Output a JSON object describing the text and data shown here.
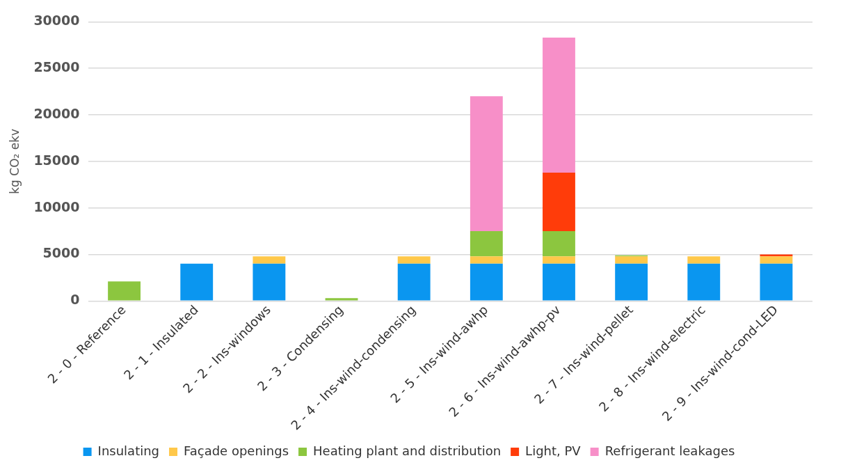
{
  "chart_data": {
    "type": "bar",
    "stacked": true,
    "ylabel": "kg CO₂ ekv",
    "categories": [
      "2 - 0 - Reference",
      "2 - 1 - Insulated",
      "2 - 2 - Ins-windows",
      "2 - 3 - Condensing",
      "2 - 4 - Ins-wind-condensing",
      "2 - 5 - Ins-wind-awhp",
      "2 - 6 - Ins-wind-awhp-pv",
      "2 - 7 - Ins-wind-pellet",
      "2 - 8 - Ins-wind-electric",
      "2 - 9 - Ins-wind-cond-LED"
    ],
    "series": [
      {
        "name": "Insulating",
        "color": "#0a96f0",
        "values": [
          0,
          4000,
          4000,
          0,
          4000,
          4000,
          4000,
          4000,
          4000,
          4000
        ]
      },
      {
        "name": "Façade openings",
        "color": "#ffc84a",
        "values": [
          0,
          0,
          800,
          0,
          800,
          800,
          800,
          800,
          800,
          800
        ]
      },
      {
        "name": "Heating plant and distribution",
        "color": "#8cc63f",
        "values": [
          2100,
          0,
          0,
          300,
          0,
          2700,
          2700,
          100,
          0,
          0
        ]
      },
      {
        "name": "Light, PV",
        "color": "#ff3c0a",
        "values": [
          0,
          0,
          0,
          0,
          0,
          0,
          6300,
          0,
          0,
          200
        ]
      },
      {
        "name": "Refrigerant leakages",
        "color": "#f78fc8",
        "values": [
          0,
          0,
          0,
          0,
          0,
          14500,
          14500,
          0,
          0,
          0
        ]
      }
    ],
    "ylim": [
      0,
      30000
    ],
    "yticks": [
      0,
      5000,
      10000,
      15000,
      20000,
      25000,
      30000
    ],
    "grid": "y",
    "legend": "bottom"
  }
}
